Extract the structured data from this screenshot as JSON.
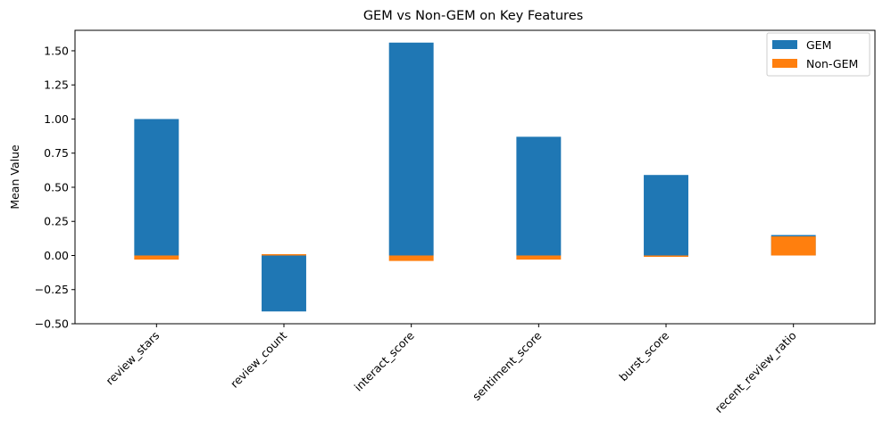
{
  "chart_data": {
    "type": "bar",
    "title": "GEM vs Non-GEM on Key Features",
    "xlabel": "",
    "ylabel": "Mean Value",
    "categories": [
      "review_stars",
      "review_count",
      "interact_score",
      "sentiment_score",
      "burst_score",
      "recent_review_ratio"
    ],
    "series": [
      {
        "name": "GEM",
        "color": "#1f77b4",
        "values": [
          1.0,
          -0.41,
          1.56,
          0.87,
          0.59,
          0.15
        ]
      },
      {
        "name": "Non-GEM",
        "color": "#ff7f0e",
        "values": [
          -0.03,
          0.01,
          -0.04,
          -0.03,
          -0.01,
          0.14
        ]
      }
    ],
    "ylim": [
      -0.5,
      1.65
    ],
    "yticks": [
      -0.5,
      -0.25,
      0.0,
      0.25,
      0.5,
      0.75,
      1.0,
      1.25,
      1.5
    ],
    "ytick_labels": [
      "−0.50",
      "−0.25",
      "0.00",
      "0.25",
      "0.50",
      "0.75",
      "1.00",
      "1.25",
      "1.50"
    ],
    "legend_position": "top-right",
    "grid": false
  }
}
